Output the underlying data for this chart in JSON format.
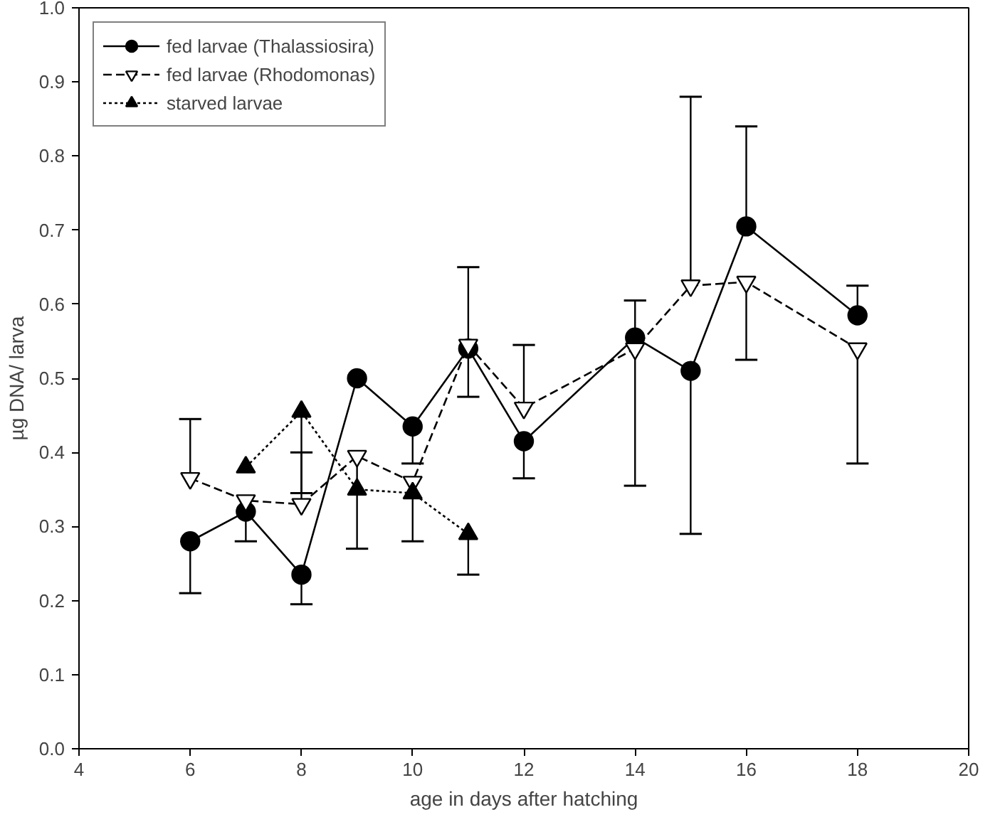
{
  "chart_data": {
    "type": "line",
    "xlabel": "age in days after hatching",
    "ylabel": "µg DNA/ larva",
    "xlim": [
      4,
      20
    ],
    "xticks": [
      4,
      6,
      8,
      10,
      12,
      14,
      16,
      18,
      20
    ],
    "ylim": [
      0,
      1
    ],
    "yticks": [
      {
        "value": 0,
        "label": "0.0"
      },
      0.1,
      0.2,
      0.3,
      0.4,
      0.5,
      0.6,
      0.7,
      0.8,
      0.9,
      {
        "value": 1,
        "label": "1.0"
      }
    ],
    "grid": false,
    "legend": "top left",
    "series": [
      {
        "name": "fed larvae (Thalassiosira)",
        "color": "#000000",
        "marker": "circle",
        "line_style": "solid",
        "x": [
          6,
          7,
          8,
          9,
          10,
          11,
          12,
          14,
          15,
          16,
          18
        ],
        "values": [
          0.28,
          0.32,
          0.235,
          0.5,
          0.435,
          0.54,
          0.415,
          0.555,
          0.51,
          0.705,
          0.585
        ],
        "errors": [
          [
            0.21,
            0.28
          ],
          [
            0.28,
            0.32
          ],
          [
            0.195,
            0.235
          ],
          null,
          [
            0.385,
            0.435
          ],
          [
            0.54,
            0.65
          ],
          [
            0.365,
            0.415
          ],
          [
            0.355,
            0.555
          ],
          [
            0.29,
            0.51
          ],
          [
            0.705,
            0.84
          ],
          [
            0.585,
            0.625
          ]
        ]
      },
      {
        "name": "fed larvae (Rhodomonas)",
        "color": "#000000",
        "marker": "triangle",
        "line_style": "dashed",
        "x": [
          6,
          7,
          8,
          9,
          10,
          11,
          12,
          14,
          15,
          16,
          18
        ],
        "values": [
          0.365,
          0.335,
          0.33,
          0.395,
          0.36,
          0.545,
          0.46,
          0.54,
          0.625,
          0.63,
          0.54
        ],
        "errors": [
          [
            0.365,
            0.445
          ],
          null,
          [
            0.33,
            0.4
          ],
          [
            0.27,
            0.395
          ],
          null,
          [
            0.475,
            0.545
          ],
          [
            0.46,
            0.545
          ],
          [
            0.54,
            0.605
          ],
          [
            0.625,
            0.88
          ],
          [
            0.525,
            0.63
          ],
          [
            0.385,
            0.54
          ]
        ]
      },
      {
        "name": "starved larvae",
        "color": "#000000",
        "marker": "triangle",
        "line_style": "dotted",
        "x": [
          7,
          8,
          9,
          10,
          11
        ],
        "values": [
          0.38,
          0.455,
          0.35,
          0.345,
          0.29
        ],
        "errors": [
          null,
          [
            0.345,
            0.455
          ],
          null,
          [
            0.28,
            0.345
          ],
          [
            0.235,
            0.29
          ]
        ]
      }
    ]
  }
}
